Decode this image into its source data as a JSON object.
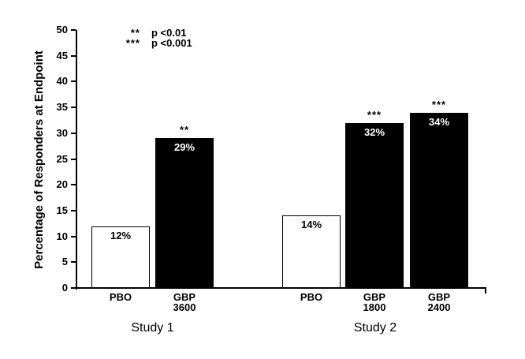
{
  "chart_data": {
    "type": "bar",
    "title": "",
    "ylabel": "Percentage of Responders at Endpoint",
    "xlabel": "",
    "ylim": [
      0,
      50
    ],
    "yticks": [
      0,
      5,
      10,
      15,
      20,
      25,
      30,
      35,
      40,
      45,
      50
    ],
    "grid": false,
    "legend_position": "top-left",
    "legend": [
      {
        "symbol": "**",
        "text": "p <0.01"
      },
      {
        "symbol": "***",
        "text": "p <0.001"
      }
    ],
    "groups": [
      {
        "label": "Study 1",
        "bars": [
          {
            "category": "PBO",
            "dose": "",
            "value": 12,
            "value_label": "12%",
            "fill": "#ffffff",
            "significance": ""
          },
          {
            "category": "GBP",
            "dose": "3600",
            "value": 29,
            "value_label": "29%",
            "fill": "#000000",
            "significance": "**"
          }
        ]
      },
      {
        "label": "Study 2",
        "bars": [
          {
            "category": "PBO",
            "dose": "",
            "value": 14,
            "value_label": "14%",
            "fill": "#ffffff",
            "significance": ""
          },
          {
            "category": "GBP",
            "dose": "1800",
            "value": 32,
            "value_label": "32%",
            "fill": "#000000",
            "significance": "***"
          },
          {
            "category": "GBP",
            "dose": "2400",
            "value": 34,
            "value_label": "34%",
            "fill": "#000000",
            "significance": "***"
          }
        ]
      }
    ],
    "colors": {
      "background": "#ffffff",
      "axis": "#000000",
      "bar_filled": "#000000",
      "bar_open": "#ffffff",
      "bar_border": "#000000",
      "value_label_on_filled": "#ffffff",
      "value_label_on_open": "#000000"
    }
  }
}
